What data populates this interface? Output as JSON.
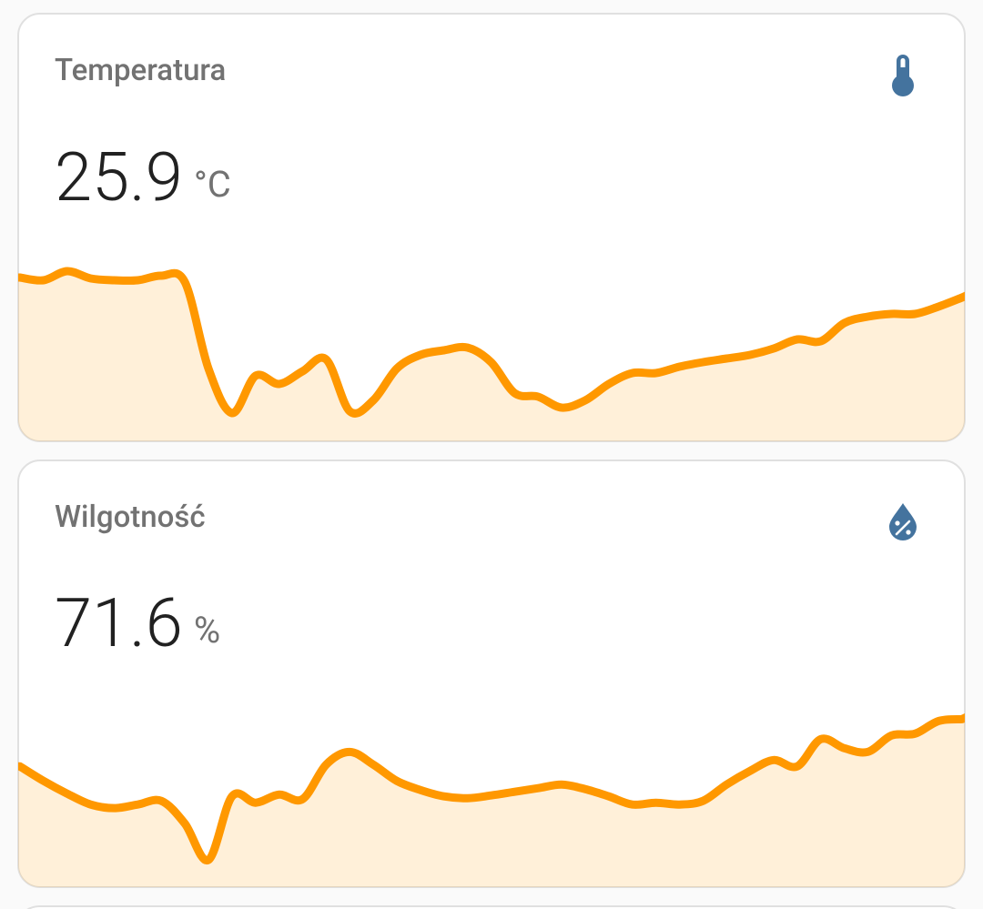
{
  "cards": [
    {
      "title": "Temperatura",
      "value": 25.9,
      "unit": "°C",
      "graph": {
        "color": "#ff9800",
        "ylim": [
          0,
          470
        ],
        "values": [
          180,
          177,
          187,
          179,
          177,
          177,
          182,
          175,
          80,
          31,
          72,
          63,
          77,
          90,
          33,
          45,
          80,
          95,
          100,
          103,
          87,
          53,
          49,
          37,
          45,
          63,
          75,
          75,
          82,
          87,
          91,
          95,
          102,
          112,
          110,
          130,
          137,
          140,
          140,
          148,
          158
        ]
      }
    },
    {
      "title": "Wilgotność",
      "value": 71.6,
      "unit": "%",
      "graph": {
        "color": "#ff9800",
        "ylim": [
          0,
          470
        ],
        "values": [
          133,
          117,
          103,
          91,
          87,
          91,
          95,
          70,
          30,
          100,
          93,
          102,
          97,
          135,
          149,
          135,
          117,
          107,
          100,
          98,
          101,
          105,
          109,
          113,
          108,
          100,
          91,
          93,
          91,
          95,
          113,
          128,
          140,
          133,
          163,
          153,
          149,
          167,
          169,
          183,
          185
        ]
      }
    }
  ]
}
